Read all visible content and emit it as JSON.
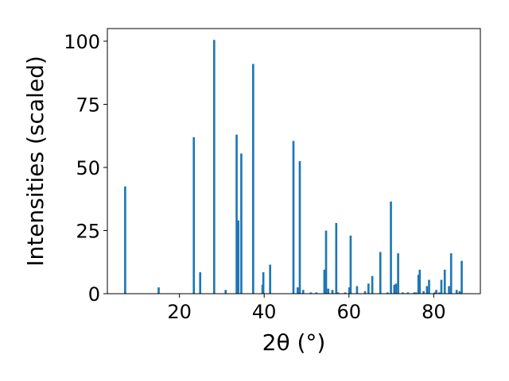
{
  "chart_data": {
    "type": "bar",
    "xlabel": "2θ (°)",
    "ylabel": "Intensities (scaled)",
    "xlim": [
      3,
      91
    ],
    "ylim": [
      0,
      105
    ],
    "x_ticks": [
      "20",
      "40",
      "60",
      "80"
    ],
    "y_ticks": [
      "0",
      "25",
      "50",
      "75",
      "100"
    ],
    "bar_color": "#1f77b4",
    "bar_width": 0.5,
    "x": [
      7.2,
      15.1,
      23.4,
      24.9,
      28.2,
      30.9,
      33.5,
      33.9,
      34.6,
      37.4,
      39.6,
      39.8,
      41.4,
      46.9,
      47.9,
      48.4,
      49.2,
      51.0,
      52.3,
      54.2,
      54.6,
      55.1,
      56.1,
      57.0,
      57.4,
      59.1,
      60.1,
      60.4,
      61.9,
      63.8,
      64.6,
      65.5,
      67.4,
      69.1,
      69.9,
      70.7,
      71.1,
      71.6,
      72.7,
      73.9,
      75.4,
      75.8,
      76.4,
      76.7,
      77.6,
      78.4,
      78.9,
      80.2,
      80.6,
      81.3,
      81.8,
      82.6,
      83.6,
      84.1,
      85.4,
      86.1,
      86.6
    ],
    "values": [
      42.5,
      2.5,
      62.0,
      8.5,
      100.5,
      1.5,
      63.0,
      29.0,
      55.5,
      91.0,
      3.5,
      8.5,
      11.5,
      60.5,
      2.5,
      52.5,
      1.5,
      0.5,
      0.5,
      9.5,
      25.0,
      2.0,
      1.5,
      28.0,
      0.5,
      0.5,
      2.5,
      23.0,
      3.0,
      1.0,
      4.0,
      7.0,
      16.5,
      0.5,
      36.5,
      3.5,
      4.0,
      16.0,
      0.5,
      0.5,
      0.5,
      0.5,
      7.5,
      9.5,
      1.0,
      3.0,
      5.5,
      0.5,
      1.5,
      0.5,
      5.5,
      9.5,
      3.0,
      16.0,
      1.5,
      1.0,
      13.0
    ]
  }
}
